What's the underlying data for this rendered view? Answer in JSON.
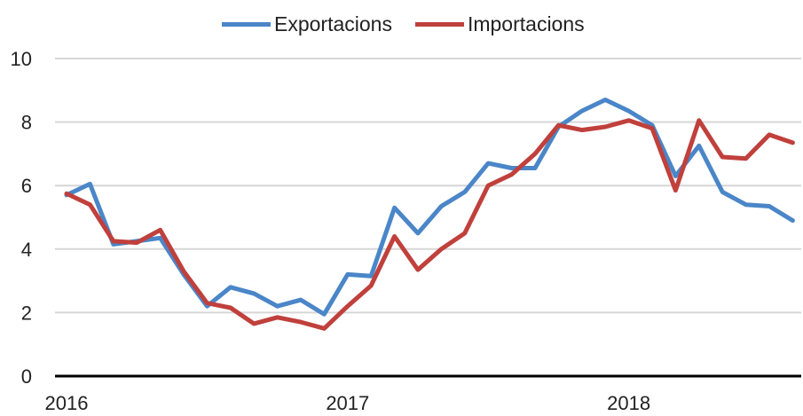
{
  "chart_data": {
    "type": "line",
    "title": "",
    "xlabel": "",
    "ylabel": "",
    "ylim": [
      0,
      10
    ],
    "yticks": [
      0,
      2,
      4,
      6,
      8,
      10
    ],
    "xticks": [
      "2016",
      "2017",
      "2018"
    ],
    "grid": true,
    "legend_position": "top",
    "x": [
      "2016-01",
      "2016-02",
      "2016-03",
      "2016-04",
      "2016-05",
      "2016-06",
      "2016-07",
      "2016-08",
      "2016-09",
      "2016-10",
      "2016-11",
      "2016-12",
      "2017-01",
      "2017-02",
      "2017-03",
      "2017-04",
      "2017-05",
      "2017-06",
      "2017-07",
      "2017-08",
      "2017-09",
      "2017-10",
      "2017-11",
      "2017-12",
      "2018-01",
      "2018-02",
      "2018-03",
      "2018-04",
      "2018-05",
      "2018-06",
      "2018-07",
      "2018-08"
    ],
    "series": [
      {
        "name": "Exportacions",
        "color": "#4a86c8",
        "values": [
          5.7,
          6.05,
          4.15,
          4.25,
          4.35,
          3.2,
          2.2,
          2.8,
          2.6,
          2.2,
          2.4,
          1.95,
          3.2,
          3.15,
          5.3,
          4.5,
          5.35,
          5.8,
          6.7,
          6.55,
          6.55,
          7.85,
          8.35,
          8.7,
          8.35,
          7.9,
          6.3,
          7.25,
          5.8,
          5.4,
          5.35,
          4.9
        ]
      },
      {
        "name": "Importacions",
        "color": "#c0403c",
        "values": [
          5.75,
          5.4,
          4.25,
          4.2,
          4.6,
          3.3,
          2.3,
          2.15,
          1.65,
          1.85,
          1.7,
          1.5,
          2.2,
          2.85,
          4.4,
          3.35,
          4.0,
          4.5,
          6.0,
          6.35,
          7.0,
          7.9,
          7.75,
          7.85,
          8.05,
          7.8,
          5.85,
          8.05,
          6.9,
          6.85,
          7.6,
          7.35
        ]
      }
    ]
  }
}
